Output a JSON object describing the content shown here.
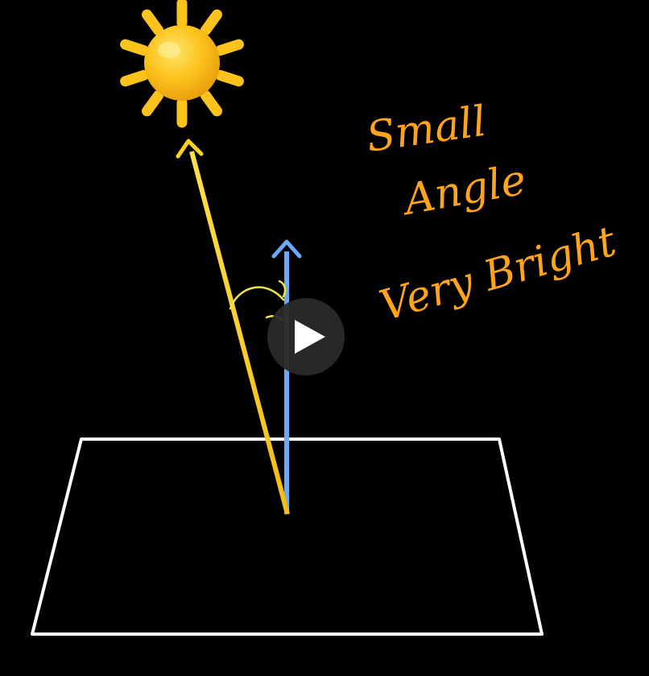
{
  "background_color": "#000000",
  "annotation": {
    "lines": [
      "Small",
      "Angle",
      "Very Bright"
    ],
    "color": "#FFA41B"
  },
  "sun": {
    "icon": "sun-icon",
    "color": "#FDC31D"
  },
  "light_ray": {
    "icon": "arrow-up-icon",
    "color": "#FFD21E"
  },
  "surface_normal": {
    "icon": "arrow-up-icon",
    "color": "#6AA9F7"
  },
  "angle_arc": {
    "color": "#EEE54A"
  },
  "surface": {
    "color": "#FFFFFF"
  },
  "video_overlay": {
    "icon": "play-icon",
    "background": "#2A2A2A",
    "glyph_color": "#FFFFFF"
  }
}
